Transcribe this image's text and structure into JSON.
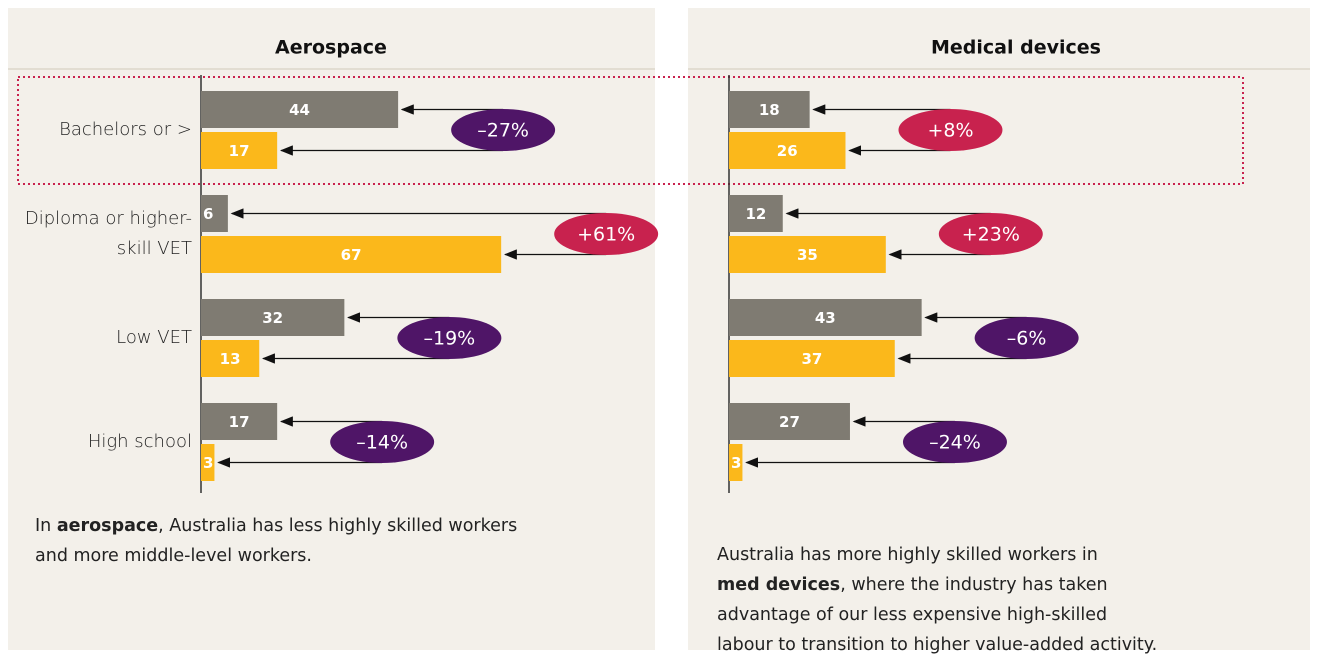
{
  "chart_data": [
    {
      "type": "bar",
      "orientation": "horizontal",
      "title": "Aerospace",
      "categories": [
        "Bachelors or >",
        "Diploma or higher-skill VET",
        "Low VET",
        "High school"
      ],
      "series": [
        {
          "color": "#7f7b72",
          "values": [
            44,
            6,
            32,
            17
          ]
        },
        {
          "color": "#fbb81b",
          "values": [
            17,
            67,
            13,
            3
          ]
        }
      ],
      "annotations": [
        {
          "text": "–27%",
          "color": "#4f1567"
        },
        {
          "text": "+61%",
          "color": "#c8224e"
        },
        {
          "text": "–19%",
          "color": "#4f1567"
        },
        {
          "text": "–14%",
          "color": "#4f1567"
        }
      ],
      "caption": [
        [
          {
            "text": "In "
          },
          {
            "text": "aerospace",
            "bold": true
          },
          {
            "text": ", Australia has less highly skilled workers"
          }
        ],
        [
          {
            "text": "and more middle-level workers."
          }
        ]
      ]
    },
    {
      "type": "bar",
      "orientation": "horizontal",
      "title": "Medical devices",
      "series": [
        {
          "color": "#7f7b72",
          "values": [
            18,
            12,
            43,
            27
          ]
        },
        {
          "color": "#fbb81b",
          "values": [
            26,
            35,
            37,
            3
          ]
        }
      ],
      "annotations": [
        {
          "text": "+8%",
          "color": "#c8224e"
        },
        {
          "text": "+23%",
          "color": "#c8224e"
        },
        {
          "text": "–6%",
          "color": "#4f1567"
        },
        {
          "text": "–24%",
          "color": "#4f1567"
        }
      ],
      "caption": [
        [
          {
            "text": "Australia has more highly skilled workers in"
          }
        ],
        [
          {
            "text": "med devices",
            "bold": true
          },
          {
            "text": ", where the industry has taken"
          }
        ],
        [
          {
            "text": "advantage of our less expensive high-skilled"
          }
        ],
        [
          {
            "text": "labour to transition to higher value-added activity."
          }
        ]
      ]
    }
  ]
}
